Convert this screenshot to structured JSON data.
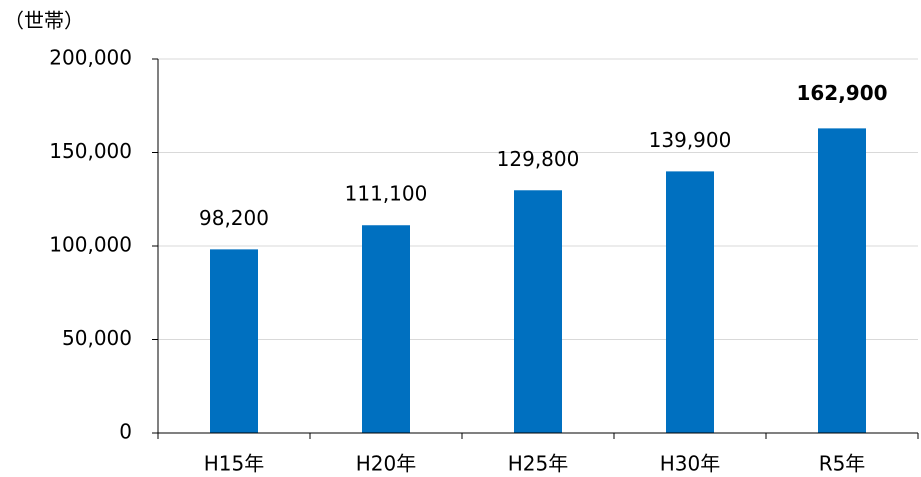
{
  "chart_data": {
    "type": "bar",
    "y_label": "（世帯）",
    "categories": [
      "H15年",
      "H20年",
      "H25年",
      "H30年",
      "R5年"
    ],
    "values": [
      98200,
      111100,
      129800,
      139900,
      162900
    ],
    "value_labels": [
      "98,200",
      "111,100",
      "129,800",
      "139,900",
      "162,900"
    ],
    "value_label_colors": [
      "#000000",
      "#000000",
      "#000000",
      "#000000",
      "#ff0000"
    ],
    "color": "#0070c0",
    "ylim": [
      0,
      200000
    ],
    "yticks": [
      0,
      {
        "value": 50000,
        "label": "50,000"
      },
      {
        "value": 100000,
        "label": "100,000"
      },
      {
        "value": 150000,
        "label": "150,000"
      },
      {
        "value": 200000,
        "label": "200,000"
      }
    ],
    "grid": true
  }
}
